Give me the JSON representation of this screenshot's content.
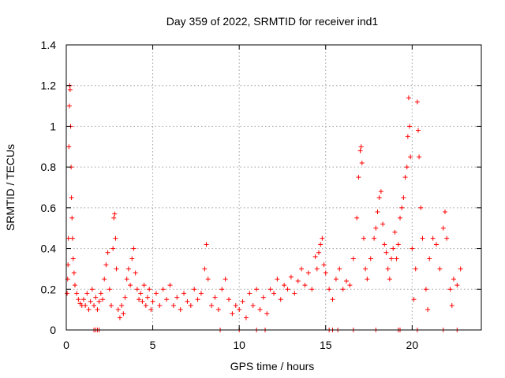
{
  "chart_data": {
    "type": "scatter",
    "title": "Day 359 of 2022, SRMTID for receiver ind1",
    "xlabel": "GPS time / hours",
    "ylabel": "SRMTID / TECUs",
    "xlim": [
      0,
      24
    ],
    "ylim": [
      0,
      1.4
    ],
    "xticks": [
      0,
      5,
      10,
      15,
      20
    ],
    "xtick_labels": [
      "0",
      "5",
      "10",
      "15",
      "20"
    ],
    "yticks": [
      0,
      0.2,
      0.4,
      0.6,
      0.8,
      1,
      1.2,
      1.4
    ],
    "ytick_labels": [
      "0",
      "0.2",
      "0.4",
      "0.6",
      "0.8",
      "1",
      "1.2",
      "1.4"
    ],
    "grid": true,
    "marker": "+",
    "marker_color": "#ff0000",
    "series": [
      {
        "name": "SRMTID",
        "points": [
          [
            0.05,
            0.18
          ],
          [
            0.08,
            0.25
          ],
          [
            0.1,
            0.32
          ],
          [
            0.12,
            0.45
          ],
          [
            0.15,
            0.9
          ],
          [
            0.18,
            1.1
          ],
          [
            0.2,
            1.2
          ],
          [
            0.22,
            1.18
          ],
          [
            0.25,
            1.0
          ],
          [
            0.28,
            0.8
          ],
          [
            0.3,
            0.65
          ],
          [
            0.33,
            0.55
          ],
          [
            0.36,
            0.45
          ],
          [
            0.4,
            0.35
          ],
          [
            0.45,
            0.28
          ],
          [
            0.5,
            0.22
          ],
          [
            0.6,
            0.18
          ],
          [
            0.7,
            0.15
          ],
          [
            0.8,
            0.13
          ],
          [
            0.9,
            0.12
          ],
          [
            1.0,
            0.15
          ],
          [
            1.1,
            0.12
          ],
          [
            1.2,
            0.18
          ],
          [
            1.3,
            0.1
          ],
          [
            1.4,
            0.14
          ],
          [
            1.5,
            0.2
          ],
          [
            1.6,
            0.12
          ],
          [
            1.7,
            0.16
          ],
          [
            1.8,
            0.1
          ],
          [
            1.9,
            0.14
          ],
          [
            2.0,
            0.18
          ],
          [
            2.1,
            0.15
          ],
          [
            2.2,
            0.25
          ],
          [
            2.3,
            0.32
          ],
          [
            2.4,
            0.38
          ],
          [
            2.5,
            0.2
          ],
          [
            2.6,
            0.12
          ],
          [
            2.7,
            0.4
          ],
          [
            2.75,
            0.55
          ],
          [
            2.8,
            0.57
          ],
          [
            2.85,
            0.45
          ],
          [
            2.9,
            0.3
          ],
          [
            3.0,
            0.1
          ],
          [
            3.1,
            0.06
          ],
          [
            3.2,
            0.12
          ],
          [
            3.3,
            0.08
          ],
          [
            3.4,
            0.16
          ],
          [
            3.5,
            0.25
          ],
          [
            3.6,
            0.3
          ],
          [
            3.7,
            0.22
          ],
          [
            3.8,
            0.35
          ],
          [
            3.9,
            0.4
          ],
          [
            4.0,
            0.28
          ],
          [
            4.1,
            0.2
          ],
          [
            4.2,
            0.15
          ],
          [
            4.3,
            0.18
          ],
          [
            4.4,
            0.14
          ],
          [
            4.5,
            0.22
          ],
          [
            4.6,
            0.12
          ],
          [
            4.7,
            0.16
          ],
          [
            4.8,
            0.2
          ],
          [
            4.9,
            0.1
          ],
          [
            5.0,
            0.14
          ],
          [
            5.2,
            0.18
          ],
          [
            5.4,
            0.12
          ],
          [
            5.6,
            0.2
          ],
          [
            5.8,
            0.15
          ],
          [
            6.0,
            0.22
          ],
          [
            6.2,
            0.12
          ],
          [
            6.4,
            0.16
          ],
          [
            6.6,
            0.1
          ],
          [
            6.8,
            0.18
          ],
          [
            7.0,
            0.14
          ],
          [
            7.2,
            0.12
          ],
          [
            7.4,
            0.2
          ],
          [
            7.6,
            0.15
          ],
          [
            7.8,
            0.18
          ],
          [
            8.0,
            0.3
          ],
          [
            8.1,
            0.42
          ],
          [
            8.2,
            0.25
          ],
          [
            8.4,
            0.12
          ],
          [
            8.6,
            0.16
          ],
          [
            8.8,
            0.1
          ],
          [
            9.0,
            0.2
          ],
          [
            9.2,
            0.25
          ],
          [
            9.4,
            0.15
          ],
          [
            9.6,
            0.08
          ],
          [
            9.8,
            0.12
          ],
          [
            10.0,
            0.1
          ],
          [
            10.2,
            0.14
          ],
          [
            10.4,
            0.06
          ],
          [
            10.6,
            0.18
          ],
          [
            10.8,
            0.12
          ],
          [
            11.0,
            0.2
          ],
          [
            11.2,
            0.1
          ],
          [
            11.4,
            0.16
          ],
          [
            11.6,
            0.08
          ],
          [
            11.8,
            0.2
          ],
          [
            12.0,
            0.18
          ],
          [
            12.2,
            0.25
          ],
          [
            12.4,
            0.15
          ],
          [
            12.6,
            0.22
          ],
          [
            12.8,
            0.2
          ],
          [
            13.0,
            0.26
          ],
          [
            13.2,
            0.18
          ],
          [
            13.4,
            0.24
          ],
          [
            13.6,
            0.3
          ],
          [
            13.8,
            0.22
          ],
          [
            14.0,
            0.28
          ],
          [
            14.2,
            0.2
          ],
          [
            14.4,
            0.36
          ],
          [
            14.5,
            0.3
          ],
          [
            14.6,
            0.38
          ],
          [
            14.7,
            0.42
          ],
          [
            14.8,
            0.45
          ],
          [
            14.9,
            0.32
          ],
          [
            15.0,
            0.28
          ],
          [
            15.2,
            0.2
          ],
          [
            15.4,
            0.15
          ],
          [
            15.6,
            0.25
          ],
          [
            15.8,
            0.3
          ],
          [
            16.0,
            0.2
          ],
          [
            16.2,
            0.24
          ],
          [
            16.4,
            0.22
          ],
          [
            16.6,
            0.35
          ],
          [
            16.8,
            0.55
          ],
          [
            16.9,
            0.75
          ],
          [
            17.0,
            0.88
          ],
          [
            17.05,
            0.9
          ],
          [
            17.1,
            0.82
          ],
          [
            17.2,
            0.45
          ],
          [
            17.3,
            0.3
          ],
          [
            17.4,
            0.25
          ],
          [
            17.6,
            0.35
          ],
          [
            17.8,
            0.45
          ],
          [
            17.9,
            0.5
          ],
          [
            18.0,
            0.58
          ],
          [
            18.1,
            0.65
          ],
          [
            18.2,
            0.68
          ],
          [
            18.3,
            0.52
          ],
          [
            18.4,
            0.42
          ],
          [
            18.5,
            0.38
          ],
          [
            18.6,
            0.3
          ],
          [
            18.7,
            0.25
          ],
          [
            18.8,
            0.35
          ],
          [
            18.9,
            0.4
          ],
          [
            19.0,
            0.48
          ],
          [
            19.1,
            0.35
          ],
          [
            19.2,
            0.42
          ],
          [
            19.3,
            0.55
          ],
          [
            19.4,
            0.6
          ],
          [
            19.5,
            0.65
          ],
          [
            19.6,
            0.75
          ],
          [
            19.7,
            0.8
          ],
          [
            19.75,
            0.95
          ],
          [
            19.8,
            1.14
          ],
          [
            19.85,
            1.0
          ],
          [
            19.9,
            0.85
          ],
          [
            20.0,
            0.4
          ],
          [
            20.1,
            0.15
          ],
          [
            20.2,
            0.3
          ],
          [
            20.3,
            1.12
          ],
          [
            20.35,
            0.98
          ],
          [
            20.4,
            0.85
          ],
          [
            20.5,
            0.6
          ],
          [
            20.6,
            0.45
          ],
          [
            20.8,
            0.2
          ],
          [
            20.9,
            0.1
          ],
          [
            21.0,
            0.35
          ],
          [
            21.2,
            0.45
          ],
          [
            21.4,
            0.42
          ],
          [
            21.6,
            0.3
          ],
          [
            21.8,
            0.5
          ],
          [
            21.9,
            0.58
          ],
          [
            22.0,
            0.45
          ],
          [
            22.2,
            0.2
          ],
          [
            22.3,
            0.12
          ],
          [
            22.4,
            0.25
          ],
          [
            22.6,
            0.22
          ],
          [
            22.8,
            0.3
          ]
        ]
      }
    ],
    "zero_markers_x": [
      1.6,
      1.7,
      1.8,
      1.9,
      8.9,
      10.0,
      11.0,
      11.5,
      15.2,
      15.4,
      15.7,
      16.6,
      17.9,
      19.2,
      19.3,
      20.3,
      21.8,
      22.6
    ]
  }
}
